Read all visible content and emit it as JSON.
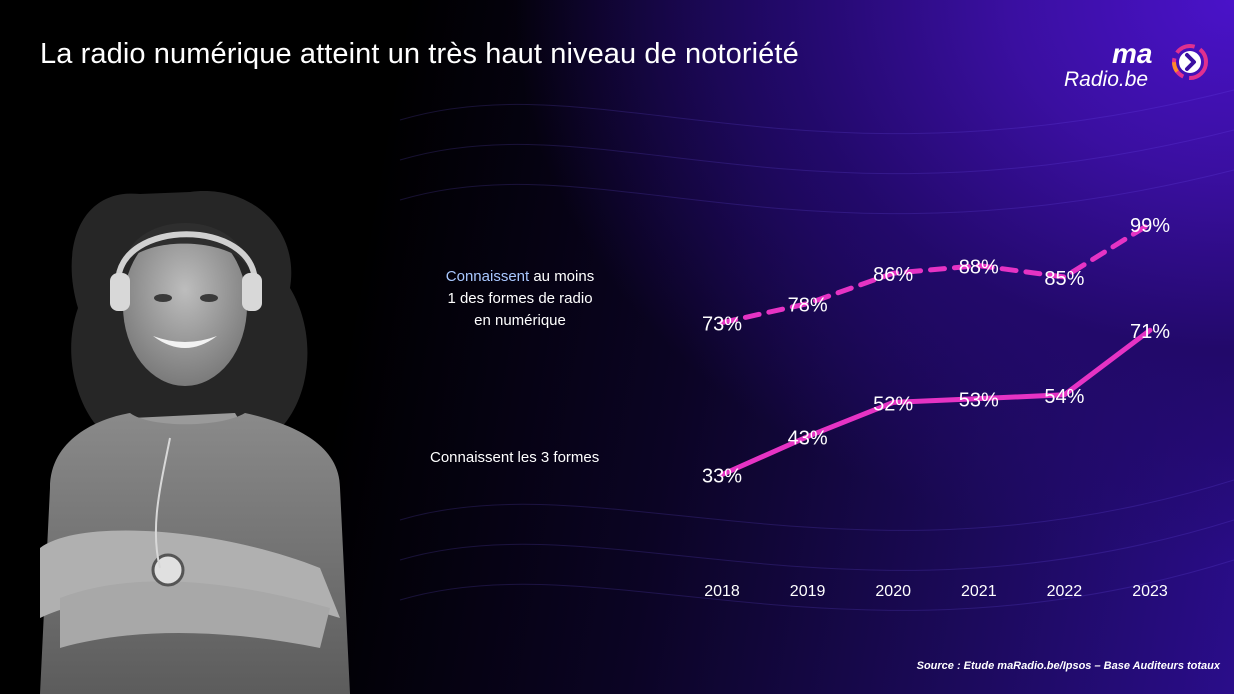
{
  "header": {
    "title": "La radio numérique atteint un très haut niveau de notoriété"
  },
  "logo": {
    "ma": "ma",
    "radio": "Radio.be",
    "icon": "play-chevron-icon"
  },
  "labels": {
    "top_highlight": "Connaissent",
    "top_rest_line1": " au moins",
    "top_line2": "1 des formes de radio",
    "top_line3": "en numérique",
    "bottom": "Connaissent les 3 formes"
  },
  "source": "Source : Etude maRadio.be/Ipsos – Base Auditeurs totaux",
  "colors": {
    "accent": "#e633c4",
    "background_right": "#3a0fa0"
  },
  "chart_data": {
    "type": "line",
    "categories": [
      "2018",
      "2019",
      "2020",
      "2021",
      "2022",
      "2023"
    ],
    "ylim": [
      0,
      110
    ],
    "series": [
      {
        "name": "Connaissent au moins 1 des formes de radio en numérique",
        "style": "dashed",
        "values": [
          73,
          78,
          86,
          88,
          85,
          99
        ],
        "labels": [
          "73%",
          "78%",
          "86%",
          "88%",
          "85%",
          "99%"
        ]
      },
      {
        "name": "Connaissent les 3 formes",
        "style": "solid",
        "values": [
          33,
          43,
          52,
          53,
          54,
          71
        ],
        "labels": [
          "33%",
          "43%",
          "52%",
          "53%",
          "54%",
          "71%"
        ]
      }
    ]
  }
}
